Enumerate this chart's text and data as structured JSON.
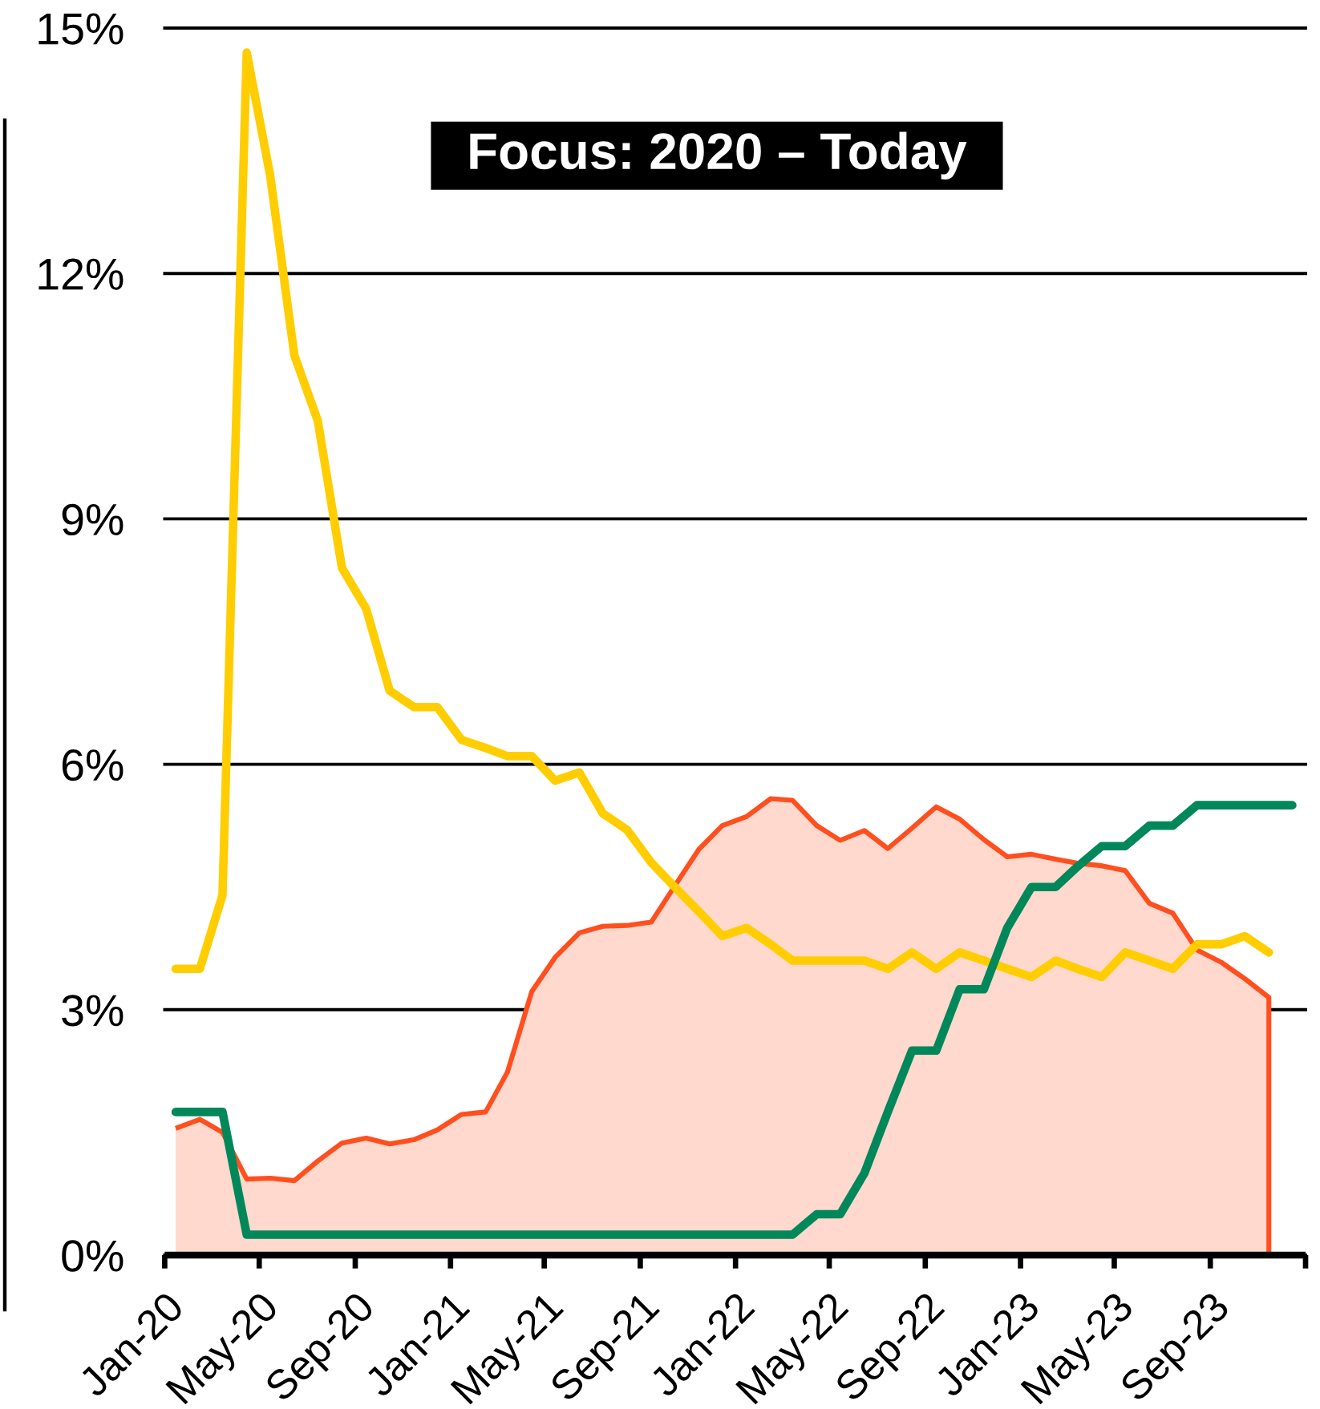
{
  "chart_data": {
    "type": "line",
    "title": "Focus: 2020 – Today",
    "x": [
      "2020-01-15",
      "2020-02-15",
      "2020-03-15",
      "2020-04-15",
      "2020-05-15",
      "2020-06-15",
      "2020-07-15",
      "2020-08-15",
      "2020-09-15",
      "2020-10-15",
      "2020-11-15",
      "2020-12-15",
      "2021-01-15",
      "2021-02-15",
      "2021-03-15",
      "2021-04-15",
      "2021-05-15",
      "2021-06-15",
      "2021-07-15",
      "2021-08-15",
      "2021-09-15",
      "2021-10-15",
      "2021-11-15",
      "2021-12-15",
      "2022-01-15",
      "2022-02-15",
      "2022-03-15",
      "2022-04-15",
      "2022-05-15",
      "2022-06-15",
      "2022-07-15",
      "2022-08-15",
      "2022-09-15",
      "2022-10-15",
      "2022-11-15",
      "2022-12-15",
      "2023-01-15",
      "2023-02-15",
      "2023-03-15",
      "2023-04-15",
      "2023-05-15",
      "2023-06-15",
      "2023-07-15",
      "2023-08-15",
      "2023-09-15",
      "2023-10-15",
      "2023-11-15",
      "2023-12-15"
    ],
    "series": [
      {
        "type": "area",
        "color": "#ff4f1f",
        "values": [
          1.55,
          1.66,
          1.5,
          0.93,
          0.94,
          0.91,
          1.15,
          1.37,
          1.43,
          1.36,
          1.41,
          1.53,
          1.72,
          1.75,
          2.24,
          3.22,
          3.64,
          3.94,
          4.02,
          4.03,
          4.07,
          4.51,
          4.96,
          5.25,
          5.36,
          5.58,
          5.56,
          5.25,
          5.07,
          5.19,
          4.97,
          5.22,
          5.48,
          5.33,
          5.08,
          4.87,
          4.9,
          4.84,
          4.79,
          4.76,
          4.7,
          4.3,
          4.18,
          3.73,
          3.58,
          3.38,
          3.15,
          null
        ]
      },
      {
        "color": "#ffcd00",
        "values": [
          3.5,
          3.5,
          4.4,
          14.7,
          13.2,
          11.0,
          10.2,
          8.4,
          7.9,
          6.9,
          6.7,
          6.7,
          6.3,
          6.2,
          6.1,
          6.1,
          5.8,
          5.9,
          5.4,
          5.2,
          4.8,
          4.5,
          4.2,
          3.9,
          4.0,
          3.8,
          3.6,
          3.6,
          3.6,
          3.6,
          3.5,
          3.7,
          3.5,
          3.7,
          3.6,
          3.5,
          3.4,
          3.6,
          3.5,
          3.4,
          3.7,
          3.6,
          3.5,
          3.8,
          3.8,
          3.9,
          3.7,
          null
        ]
      },
      {
        "color": "#00875a",
        "values": [
          1.75,
          1.75,
          1.75,
          0.25,
          0.25,
          0.25,
          0.25,
          0.25,
          0.25,
          0.25,
          0.25,
          0.25,
          0.25,
          0.25,
          0.25,
          0.25,
          0.25,
          0.25,
          0.25,
          0.25,
          0.25,
          0.25,
          0.25,
          0.25,
          0.25,
          0.25,
          0.25,
          0.5,
          0.5,
          1.0,
          1.75,
          2.5,
          2.5,
          3.25,
          3.25,
          4.0,
          4.5,
          4.5,
          4.75,
          5.0,
          5.0,
          5.25,
          5.25,
          5.5,
          5.5,
          5.5,
          5.5,
          5.5
        ]
      }
    ],
    "xlim": [
      "2020-01",
      "2024-01"
    ],
    "xticks": [
      {
        "value": "2020-01",
        "label": "Jan-20"
      },
      {
        "value": "2020-05",
        "label": "May-20"
      },
      {
        "value": "2020-09",
        "label": "Sep-20"
      },
      {
        "value": "2021-01",
        "label": "Jan-21"
      },
      {
        "value": "2021-05",
        "label": "May-21"
      },
      {
        "value": "2021-09",
        "label": "Sep-21"
      },
      {
        "value": "2022-01",
        "label": "Jan-22"
      },
      {
        "value": "2022-05",
        "label": "May-22"
      },
      {
        "value": "2022-09",
        "label": "Sep-22"
      },
      {
        "value": "2023-01",
        "label": "Jan-23"
      },
      {
        "value": "2023-05",
        "label": "May-23"
      },
      {
        "value": "2023-09",
        "label": "Sep-23"
      },
      {
        "value": "2024-01",
        "label": null
      }
    ],
    "ylim": [
      0,
      15
    ],
    "yticks": [
      {
        "value": 0,
        "label": "0%"
      },
      {
        "value": 3,
        "label": "3%"
      },
      {
        "value": 6,
        "label": "6%"
      },
      {
        "value": 9,
        "label": "9%"
      },
      {
        "value": 12,
        "label": "12%"
      },
      {
        "value": 15,
        "label": "15%"
      }
    ],
    "grid": "y",
    "marker": "none",
    "line_style": "solid"
  }
}
